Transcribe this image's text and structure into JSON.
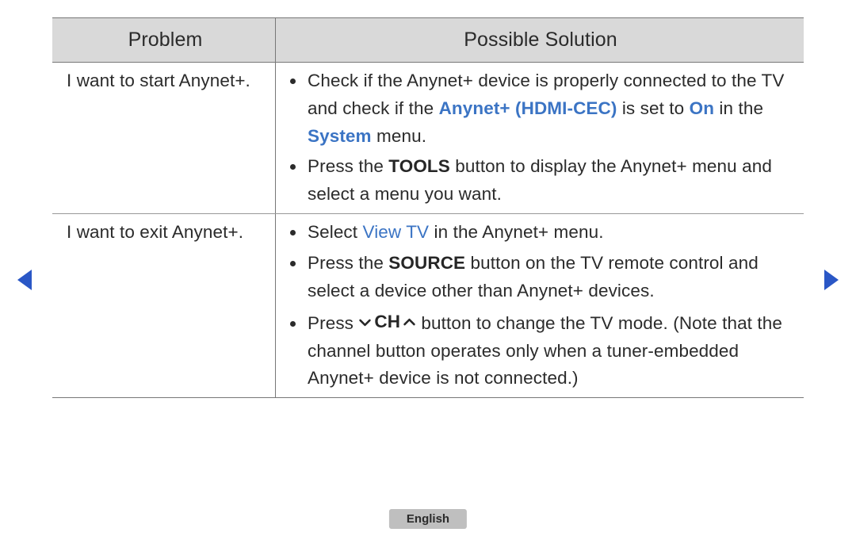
{
  "nav": {
    "prev_icon": "triangle-left",
    "next_icon": "triangle-right"
  },
  "table": {
    "headers": {
      "problem": "Problem",
      "solution": "Possible Solution"
    },
    "rows": [
      {
        "problem": "I want to start Anynet+.",
        "bullets": [
          {
            "segments": [
              {
                "t": "Check if the Anynet+ device is properly connected to the TV and check if the "
              },
              {
                "t": "Anynet+ (HDMI-CEC)",
                "style": "accent"
              },
              {
                "t": " is set to "
              },
              {
                "t": "On",
                "style": "accent"
              },
              {
                "t": " in the "
              },
              {
                "t": "System",
                "style": "accent"
              },
              {
                "t": " menu."
              }
            ]
          },
          {
            "segments": [
              {
                "t": "Press the "
              },
              {
                "t": "TOOLS",
                "style": "bold"
              },
              {
                "t": " button to display the Anynet+ menu and select a menu you want."
              }
            ]
          }
        ]
      },
      {
        "problem": "I want to exit Anynet+.",
        "bullets": [
          {
            "segments": [
              {
                "t": "Select "
              },
              {
                "t": "View TV",
                "style": "accent-reg"
              },
              {
                "t": " in the Anynet+ menu."
              }
            ]
          },
          {
            "segments": [
              {
                "t": "Press the "
              },
              {
                "t": "SOURCE",
                "style": "bold"
              },
              {
                "t": " button on the TV remote control and select a device other than Anynet+ devices."
              }
            ]
          },
          {
            "segments": [
              {
                "t": "Press "
              },
              {
                "style": "ch-button",
                "down": "⌄",
                "label": "CH",
                "up": "⌃"
              },
              {
                "t": " button to change the TV mode. (Note that the channel button operates only when a tuner-embedded Anynet+ device is not connected.)"
              }
            ]
          }
        ]
      }
    ]
  },
  "footer": {
    "language": "English"
  },
  "colors": {
    "accent": "#3b74c4",
    "nav_arrow": "#2a57c6",
    "header_bg": "#d9d9d9",
    "border": "#777777",
    "lang_bg": "#bfbfbf"
  }
}
